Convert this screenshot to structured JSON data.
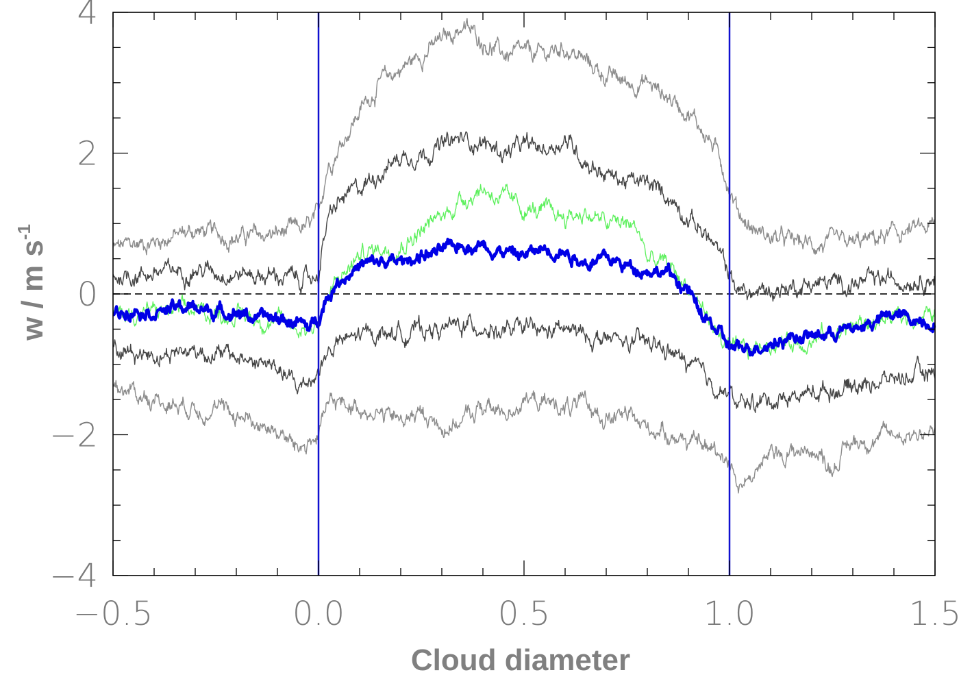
{
  "chart_data": {
    "type": "line",
    "title": "",
    "xlabel": "Cloud diameter",
    "ylabel": "w / m s",
    "ylabel_superscript": "-1",
    "xlim": [
      -0.5,
      1.5
    ],
    "ylim": [
      -4.0,
      4.0
    ],
    "x_ticks": [
      -0.5,
      0.0,
      0.5,
      1.0,
      1.5
    ],
    "x_tick_labels": [
      "−0.5",
      "0.0",
      "0.5",
      "1.0",
      "1.5"
    ],
    "y_ticks": [
      -4,
      -2,
      0,
      2,
      4
    ],
    "y_tick_labels": [
      "−4",
      "−2",
      "0",
      "2",
      "4"
    ],
    "grid": false,
    "legend": "none",
    "reference_lines": {
      "vertical_x": [
        0.0,
        1.0
      ],
      "vertical_color": "#1010d0",
      "horizontal_y": 0.0,
      "horizontal_style": "dashed"
    },
    "series": [
      {
        "color": "#8c8c8c",
        "width": 1.4,
        "x": [
          -0.5,
          -0.4,
          -0.3,
          -0.2,
          -0.1,
          -0.02,
          0.0,
          0.02,
          0.05,
          0.1,
          0.15,
          0.2,
          0.25,
          0.3,
          0.35,
          0.4,
          0.45,
          0.5,
          0.55,
          0.6,
          0.65,
          0.7,
          0.75,
          0.8,
          0.85,
          0.9,
          0.95,
          0.98,
          1.0,
          1.02,
          1.05,
          1.1,
          1.2,
          1.3,
          1.4,
          1.5
        ],
        "y": [
          0.65,
          0.75,
          0.9,
          0.8,
          0.85,
          0.95,
          1.1,
          1.8,
          2.1,
          2.6,
          3.0,
          3.2,
          3.4,
          3.6,
          3.8,
          3.6,
          3.4,
          3.4,
          3.4,
          3.5,
          3.3,
          3.1,
          3.0,
          3.0,
          2.8,
          2.6,
          2.2,
          1.9,
          1.5,
          1.2,
          0.95,
          0.8,
          0.7,
          0.7,
          0.85,
          0.95
        ]
      },
      {
        "color": "#454545",
        "width": 1.4,
        "x": [
          -0.5,
          -0.4,
          -0.3,
          -0.2,
          -0.1,
          -0.02,
          0.0,
          0.02,
          0.05,
          0.1,
          0.15,
          0.2,
          0.25,
          0.3,
          0.35,
          0.4,
          0.45,
          0.5,
          0.55,
          0.6,
          0.65,
          0.7,
          0.75,
          0.8,
          0.85,
          0.9,
          0.95,
          0.98,
          1.0,
          1.02,
          1.05,
          1.1,
          1.2,
          1.3,
          1.4,
          1.5
        ],
        "y": [
          0.25,
          0.3,
          0.35,
          0.3,
          0.25,
          0.2,
          0.3,
          1.0,
          1.3,
          1.5,
          1.75,
          1.95,
          2.0,
          2.1,
          2.2,
          2.15,
          2.0,
          2.1,
          2.05,
          2.2,
          1.9,
          1.7,
          1.6,
          1.55,
          1.4,
          1.1,
          0.8,
          0.5,
          0.3,
          0.05,
          0.0,
          0.05,
          0.15,
          0.15,
          0.2,
          0.25
        ]
      },
      {
        "color": "#5cf05c",
        "width": 1.3,
        "x": [
          -0.5,
          -0.4,
          -0.3,
          -0.2,
          -0.1,
          -0.02,
          0.0,
          0.02,
          0.05,
          0.1,
          0.15,
          0.2,
          0.25,
          0.3,
          0.35,
          0.4,
          0.45,
          0.5,
          0.55,
          0.6,
          0.65,
          0.7,
          0.75,
          0.78,
          0.8,
          0.85,
          0.9,
          0.95,
          0.98,
          1.0,
          1.02,
          1.05,
          1.1,
          1.2,
          1.3,
          1.4,
          1.5
        ],
        "y": [
          -0.3,
          -0.25,
          -0.25,
          -0.3,
          -0.4,
          -0.5,
          -0.35,
          -0.1,
          0.2,
          0.55,
          0.65,
          0.7,
          0.9,
          1.1,
          1.35,
          1.5,
          1.35,
          1.2,
          1.15,
          1.1,
          1.15,
          1.0,
          1.0,
          0.9,
          0.5,
          0.4,
          0.1,
          -0.35,
          -0.65,
          -0.8,
          -0.85,
          -0.8,
          -0.7,
          -0.65,
          -0.45,
          -0.35,
          -0.3
        ]
      },
      {
        "color": "#0000e6",
        "width": 4.2,
        "x": [
          -0.5,
          -0.45,
          -0.4,
          -0.35,
          -0.3,
          -0.25,
          -0.2,
          -0.15,
          -0.1,
          -0.05,
          -0.02,
          0.0,
          0.02,
          0.05,
          0.1,
          0.15,
          0.2,
          0.25,
          0.3,
          0.35,
          0.4,
          0.45,
          0.5,
          0.55,
          0.6,
          0.65,
          0.7,
          0.75,
          0.8,
          0.85,
          0.9,
          0.93,
          0.95,
          0.98,
          1.0,
          1.02,
          1.05,
          1.1,
          1.15,
          1.2,
          1.25,
          1.3,
          1.35,
          1.4,
          1.45,
          1.5
        ],
        "y": [
          -0.3,
          -0.2,
          -0.25,
          -0.2,
          -0.2,
          -0.25,
          -0.25,
          -0.35,
          -0.35,
          -0.4,
          -0.5,
          -0.3,
          -0.05,
          0.2,
          0.4,
          0.45,
          0.45,
          0.55,
          0.6,
          0.7,
          0.7,
          0.6,
          0.55,
          0.65,
          0.6,
          0.45,
          0.5,
          0.4,
          0.35,
          0.3,
          0.05,
          -0.3,
          -0.4,
          -0.6,
          -0.75,
          -0.8,
          -0.75,
          -0.7,
          -0.6,
          -0.6,
          -0.55,
          -0.5,
          -0.4,
          -0.3,
          -0.35,
          -0.4
        ]
      },
      {
        "color": "#454545",
        "width": 1.4,
        "x": [
          -0.5,
          -0.4,
          -0.3,
          -0.2,
          -0.1,
          -0.05,
          -0.02,
          0.0,
          0.02,
          0.05,
          0.1,
          0.15,
          0.2,
          0.25,
          0.3,
          0.35,
          0.4,
          0.45,
          0.5,
          0.55,
          0.6,
          0.65,
          0.7,
          0.75,
          0.8,
          0.85,
          0.9,
          0.95,
          0.98,
          1.0,
          1.02,
          1.05,
          1.1,
          1.2,
          1.3,
          1.4,
          1.5
        ],
        "y": [
          -0.8,
          -0.85,
          -0.8,
          -0.9,
          -1.05,
          -1.35,
          -1.2,
          -1.1,
          -0.85,
          -0.7,
          -0.6,
          -0.55,
          -0.55,
          -0.5,
          -0.5,
          -0.45,
          -0.45,
          -0.55,
          -0.5,
          -0.55,
          -0.5,
          -0.6,
          -0.65,
          -0.7,
          -0.7,
          -0.8,
          -1.0,
          -1.25,
          -1.35,
          -1.4,
          -1.6,
          -1.55,
          -1.5,
          -1.4,
          -1.3,
          -1.2,
          -1.1
        ]
      },
      {
        "color": "#8c8c8c",
        "width": 1.4,
        "x": [
          -0.5,
          -0.4,
          -0.3,
          -0.2,
          -0.1,
          -0.05,
          -0.02,
          0.0,
          0.02,
          0.05,
          0.1,
          0.15,
          0.2,
          0.25,
          0.3,
          0.35,
          0.4,
          0.45,
          0.5,
          0.55,
          0.6,
          0.65,
          0.7,
          0.75,
          0.8,
          0.85,
          0.9,
          0.95,
          0.98,
          1.0,
          1.02,
          1.05,
          1.1,
          1.2,
          1.25,
          1.3,
          1.4,
          1.5
        ],
        "y": [
          -1.3,
          -1.5,
          -1.6,
          -1.7,
          -1.95,
          -2.2,
          -2.1,
          -2.0,
          -1.6,
          -1.55,
          -1.6,
          -1.7,
          -1.8,
          -1.7,
          -1.9,
          -1.8,
          -1.6,
          -1.7,
          -1.5,
          -1.55,
          -1.6,
          -1.6,
          -1.75,
          -1.75,
          -1.9,
          -1.95,
          -2.1,
          -2.2,
          -2.25,
          -2.35,
          -2.7,
          -2.6,
          -2.3,
          -2.2,
          -2.45,
          -2.1,
          -2.0,
          -1.95
        ]
      }
    ]
  }
}
